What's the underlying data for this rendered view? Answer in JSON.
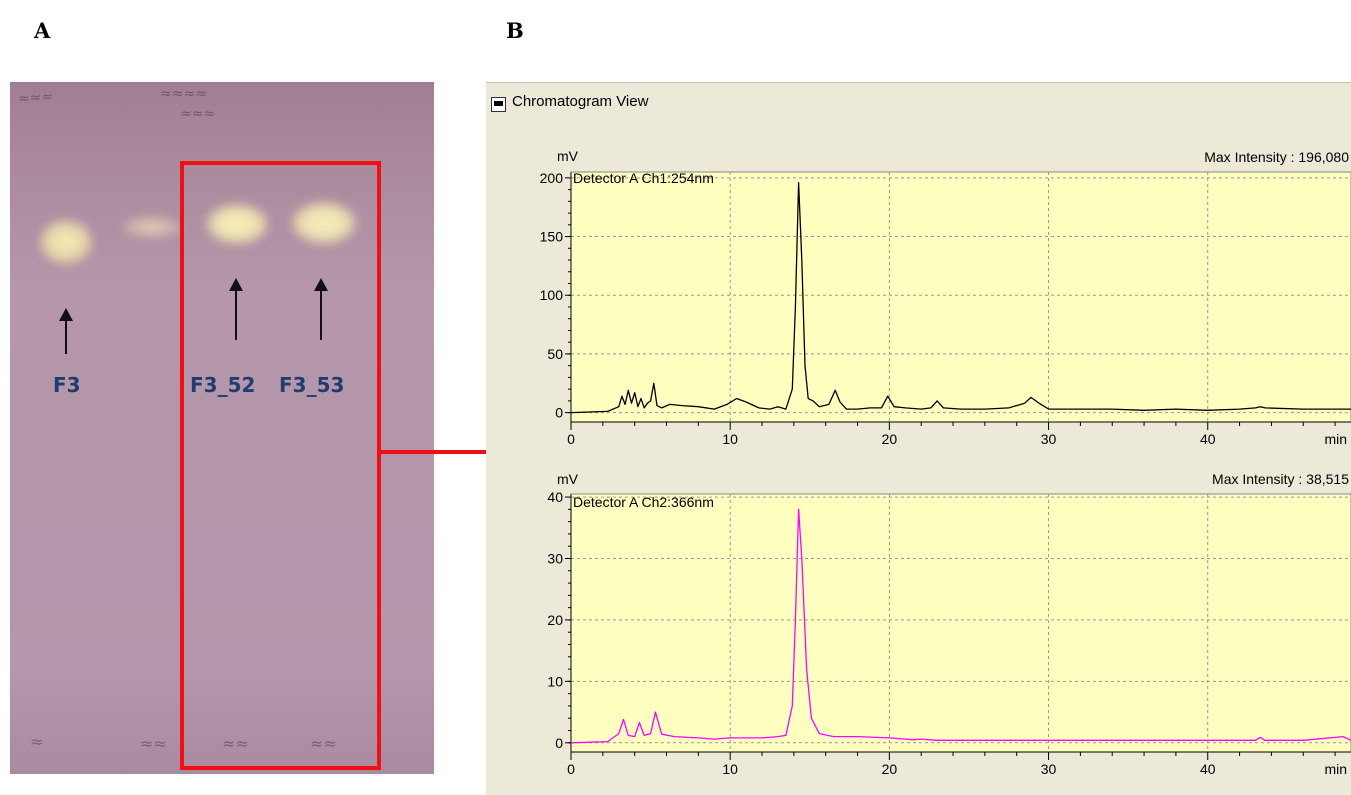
{
  "panel_labels": {
    "a": "A",
    "b": "B"
  },
  "plate": {
    "lanes": [
      {
        "label": "F3",
        "has_arrow": true
      },
      {
        "label": "",
        "has_arrow": false
      },
      {
        "label": "F3_52",
        "has_arrow": true
      },
      {
        "label": "F3_53",
        "has_arrow": true
      }
    ],
    "colors": {
      "plate": "#b596aa",
      "spot": "#f3eab0",
      "selection": "#ef1111",
      "label": "#1f3d6e"
    }
  },
  "window": {
    "title": "Chromatogram View",
    "icon": "window-icon"
  },
  "chart_data": [
    {
      "type": "line",
      "detector": "Detector A Ch1:254nm",
      "max_intensity_label": "Max Intensity : 196,080",
      "ylabel": "mV",
      "xlabel": "min",
      "xlim": [
        0,
        49
      ],
      "ylim": [
        -8,
        205
      ],
      "xticks": [
        0,
        10,
        20,
        30,
        40
      ],
      "yticks": [
        0,
        50,
        100,
        150,
        200
      ],
      "grid": true,
      "color": "#000000",
      "background": "#ffffc0",
      "series": [
        {
          "x": [
            0,
            2.3,
            3.0,
            3.2,
            3.4,
            3.6,
            3.8,
            4.0,
            4.2,
            4.4,
            4.6,
            4.8,
            5.0,
            5.2,
            5.4,
            5.7,
            6.2,
            7.0,
            8.0,
            9.0,
            9.8,
            10.4,
            11.0,
            11.8,
            12.5,
            13.0,
            13.5,
            13.9,
            14.1,
            14.3,
            14.5,
            14.7,
            14.9,
            15.2,
            15.6,
            16.2,
            16.6,
            16.9,
            17.3,
            18.0,
            18.8,
            19.5,
            19.9,
            20.3,
            21.0,
            22.0,
            22.6,
            23.0,
            23.4,
            24.5,
            26.0,
            27.5,
            28.5,
            28.9,
            29.4,
            30.0,
            32.0,
            34.0,
            36.0,
            38.0,
            40.0,
            42.0,
            43.0,
            43.3,
            43.6,
            46.0,
            48.0,
            49.0
          ],
          "y": [
            0,
            1,
            5,
            14,
            7,
            19,
            8,
            17,
            5,
            12,
            4,
            8,
            10,
            25,
            6,
            4,
            7,
            6,
            5,
            3,
            7,
            12,
            9,
            4,
            3,
            5,
            3,
            20,
            90,
            196,
            130,
            40,
            12,
            10,
            5,
            7,
            19,
            9,
            3,
            3,
            4,
            4,
            14,
            5,
            4,
            3,
            4,
            10,
            4,
            3,
            3,
            4,
            8,
            13,
            8,
            3,
            3,
            3,
            2,
            3,
            2,
            3,
            4,
            5,
            4,
            3,
            3,
            3
          ]
        }
      ]
    },
    {
      "type": "line",
      "detector": "Detector A Ch2:366nm",
      "max_intensity_label": "Max Intensity : 38,515",
      "ylabel": "mV",
      "xlabel": "min",
      "xlim": [
        0,
        49
      ],
      "ylim": [
        -1.5,
        40.5
      ],
      "xticks": [
        0,
        10,
        20,
        30,
        40
      ],
      "yticks": [
        0,
        10,
        20,
        30,
        40
      ],
      "grid": true,
      "color": "#ff00ff",
      "background": "#ffffc0",
      "series": [
        {
          "x": [
            0,
            2.3,
            3.0,
            3.3,
            3.6,
            4.0,
            4.3,
            4.6,
            5.0,
            5.3,
            5.7,
            6.5,
            8.0,
            9.0,
            10.0,
            12.0,
            13.0,
            13.5,
            13.9,
            14.1,
            14.3,
            14.5,
            14.8,
            15.1,
            15.6,
            16.5,
            18.0,
            20.0,
            21.5,
            22.0,
            23.0,
            26.0,
            30.0,
            35.0,
            40.0,
            43.0,
            43.3,
            43.6,
            46.0,
            48.5,
            49.0
          ],
          "y": [
            0,
            0.2,
            1.5,
            3.8,
            1.2,
            1.0,
            3.3,
            1.2,
            1.5,
            5.0,
            1.4,
            1.0,
            0.8,
            0.6,
            0.8,
            0.8,
            1.0,
            1.2,
            6.0,
            20.0,
            38.0,
            30.0,
            12.0,
            4.0,
            1.5,
            1.0,
            1.0,
            0.8,
            0.5,
            0.6,
            0.4,
            0.4,
            0.4,
            0.4,
            0.4,
            0.4,
            0.9,
            0.4,
            0.4,
            1.0,
            0.4
          ]
        }
      ]
    }
  ]
}
